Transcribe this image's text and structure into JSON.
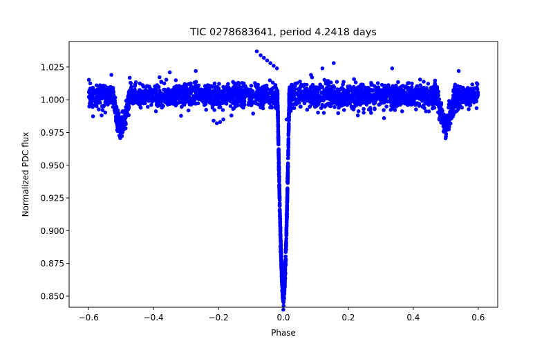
{
  "chart_data": {
    "type": "scatter",
    "title": "TIC 0278683641, period 4.2418 days",
    "xlabel": "Phase",
    "ylabel": "Normalized PDC flux",
    "xlim": [
      -0.66,
      0.66
    ],
    "ylim": [
      0.8415,
      1.0445
    ],
    "xticks": [
      -0.6,
      -0.4,
      -0.2,
      0.0,
      0.2,
      0.4,
      0.6
    ],
    "xtick_labels": [
      "−0.6",
      "−0.4",
      "−0.2",
      "0.0",
      "0.2",
      "0.4",
      "0.6"
    ],
    "yticks": [
      0.85,
      0.875,
      0.9,
      0.925,
      0.95,
      0.975,
      1.0,
      1.025
    ],
    "ytick_labels": [
      "0.850",
      "0.875",
      "0.900",
      "0.925",
      "0.950",
      "0.975",
      "1.000",
      "1.025"
    ],
    "grid": false,
    "marker_color": "#0000ff",
    "series": [
      {
        "baseline": 1.003,
        "phase_range": [
          -0.6,
          0.6
        ],
        "primary_transit": {
          "phase": 0.0,
          "min_flux": 0.849,
          "half_width": 0.018
        },
        "secondary_eclipse": {
          "phase": 0.5,
          "min_flux": 0.98,
          "half_width": 0.025
        },
        "outlier_points": [
          {
            "x": -0.082,
            "y": 1.037
          },
          {
            "x": -0.07,
            "y": 1.034
          },
          {
            "x": -0.06,
            "y": 1.032
          },
          {
            "x": -0.05,
            "y": 1.03
          },
          {
            "x": -0.04,
            "y": 1.028
          },
          {
            "x": -0.03,
            "y": 1.026
          },
          {
            "x": -0.02,
            "y": 1.024
          },
          {
            "x": -0.215,
            "y": 0.984
          },
          {
            "x": -0.205,
            "y": 0.982
          },
          {
            "x": -0.195,
            "y": 0.983
          },
          {
            "x": -0.185,
            "y": 0.985
          },
          {
            "x": -0.16,
            "y": 0.988
          },
          {
            "x": -0.155,
            "y": 0.993
          },
          {
            "x": 0.155,
            "y": 1.028
          },
          {
            "x": 0.12,
            "y": 1.024
          },
          {
            "x": 0.085,
            "y": 1.019
          },
          {
            "x": 0.335,
            "y": 1.024
          },
          {
            "x": 0.31,
            "y": 0.986
          },
          {
            "x": 0.27,
            "y": 0.99
          },
          {
            "x": -0.27,
            "y": 1.022
          },
          {
            "x": -0.35,
            "y": 1.021
          },
          {
            "x": 0.54,
            "y": 1.022
          },
          {
            "x": -0.53,
            "y": 1.019
          },
          {
            "x": 0.01,
            "y": 0.985
          }
        ]
      }
    ]
  }
}
